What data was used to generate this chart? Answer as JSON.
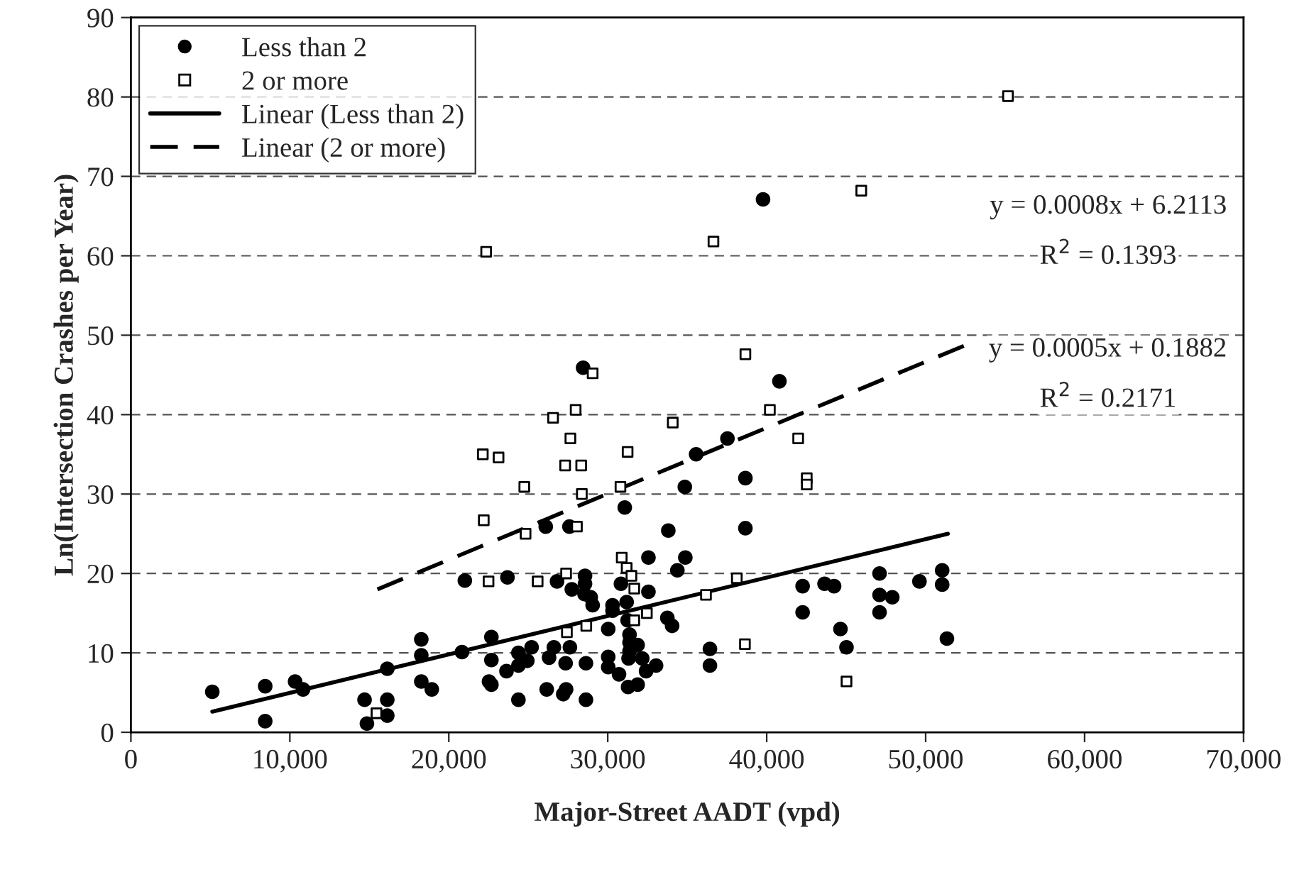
{
  "chart_data": {
    "type": "scatter",
    "xlabel": "Major-Street AADT (vpd)",
    "ylabel": "Ln(Intersection Crashes per Year)",
    "xlim": [
      0,
      70000
    ],
    "ylim": [
      0,
      90
    ],
    "xticks": [
      0,
      {
        "value": 10000,
        "label": "10,000"
      },
      {
        "value": 20000,
        "label": "20,000"
      },
      {
        "value": 30000,
        "label": "30,000"
      },
      {
        "value": 40000,
        "label": "40,000"
      },
      {
        "value": 50000,
        "label": "50,000"
      },
      {
        "value": 60000,
        "label": "60,000"
      },
      {
        "value": 70000,
        "label": "70,000"
      }
    ],
    "yticks": [
      0,
      10,
      20,
      30,
      40,
      50,
      60,
      70,
      80,
      90
    ],
    "grid": "y",
    "legend": "top left",
    "annotations": [
      "y = 0.0008x + 6.2113",
      "R$^{2}$ = 0.1393",
      "y = 0.0005x + 0.1882",
      "R$^{2}$ = 0.2171"
    ],
    "series": [
      {
        "name": "Less than 2",
        "marker": "circle",
        "color": "#000000",
        "x": [
          5120,
          8450,
          8450,
          10330,
          10830,
          14700,
          14850,
          16130,
          16130,
          16130,
          18270,
          18270,
          18270,
          18930,
          20830,
          21010,
          22680,
          22680,
          22530,
          22680,
          23630,
          23690,
          28450,
          40800,
          37530,
          35560,
          38660,
          34850,
          31070,
          26100,
          27590,
          33810,
          38660,
          32560,
          34880,
          34380,
          26810,
          28570,
          28570,
          27740,
          28540,
          28930,
          29050,
          30300,
          30300,
          30830,
          31190,
          32560,
          33750,
          34050,
          31250,
          31370,
          30030,
          31370,
          31370,
          31880,
          31310,
          32170,
          33040,
          32410,
          31880,
          31280,
          30710,
          30030,
          30030,
          28630,
          27350,
          27620,
          26610,
          26310,
          25210,
          24940,
          24380,
          24380,
          24380,
          26160,
          27200,
          27380,
          28630,
          36430,
          36430,
          42260,
          42260,
          43640,
          44240,
          44640,
          45020,
          47100,
          47100,
          47900,
          47100,
          49610,
          51040,
          51040,
          51340,
          39770
        ],
        "values": [
          5.1,
          5.8,
          1.4,
          6.4,
          5.4,
          4.1,
          1.1,
          4.1,
          2.1,
          8.0,
          11.7,
          9.7,
          6.4,
          5.4,
          10.1,
          19.1,
          12.0,
          9.1,
          6.4,
          6.0,
          7.7,
          19.5,
          45.9,
          44.2,
          37.0,
          35.0,
          32.0,
          30.9,
          28.3,
          25.9,
          25.9,
          25.4,
          25.7,
          22.0,
          22.0,
          20.4,
          19.0,
          19.7,
          18.7,
          18.0,
          17.4,
          17.0,
          16.0,
          16.0,
          15.3,
          18.7,
          16.4,
          17.7,
          14.4,
          13.4,
          14.1,
          12.3,
          13.0,
          11.3,
          10.2,
          11.0,
          9.3,
          9.3,
          8.4,
          7.7,
          6.0,
          5.7,
          7.3,
          9.5,
          8.2,
          8.7,
          8.7,
          10.7,
          10.7,
          9.4,
          10.7,
          9.0,
          10.0,
          8.4,
          4.1,
          5.4,
          4.8,
          5.4,
          4.1,
          10.5,
          8.4,
          18.4,
          15.1,
          18.7,
          18.4,
          13.0,
          10.7,
          20.0,
          17.3,
          17.0,
          15.1,
          19.0,
          20.4,
          18.6,
          11.8,
          67.1
        ]
      },
      {
        "name": "2 or more",
        "marker": "square",
        "color": "#000000",
        "x": [
          22200,
          22500,
          15450,
          55180,
          45950,
          36650,
          22350,
          38660,
          29050,
          26560,
          27980,
          34090,
          40200,
          27650,
          22140,
          23130,
          27320,
          28330,
          31250,
          24750,
          30800,
          28370,
          28060,
          24830,
          30880,
          31190,
          31490,
          31670,
          27380,
          25590,
          38120,
          36180,
          32460,
          31670,
          28650,
          27430,
          38630,
          41980,
          42520,
          42520,
          45020
        ],
        "values": [
          26.7,
          19.0,
          2.4,
          80.1,
          68.2,
          61.8,
          60.5,
          47.6,
          45.2,
          39.6,
          40.6,
          39.0,
          40.6,
          37.0,
          35.0,
          34.6,
          33.6,
          33.6,
          35.3,
          30.9,
          30.9,
          30.0,
          25.9,
          25.0,
          22.0,
          20.7,
          19.7,
          18.1,
          20.0,
          19.0,
          19.4,
          17.3,
          15.0,
          14.1,
          13.4,
          12.6,
          11.1,
          37.0,
          32.0,
          31.2,
          6.4
        ]
      },
      {
        "name": "Linear (Less than 2)",
        "type": "line",
        "line_style": "solid",
        "color": "#000000",
        "x": [
          5120,
          51400
        ],
        "values": [
          2.6,
          25.0
        ]
      },
      {
        "name": "Linear (2 or more)",
        "type": "line",
        "line_style": "dashed",
        "color": "#000000",
        "x": [
          15510,
          52700
        ],
        "values": [
          18.0,
          48.9
        ]
      }
    ]
  }
}
